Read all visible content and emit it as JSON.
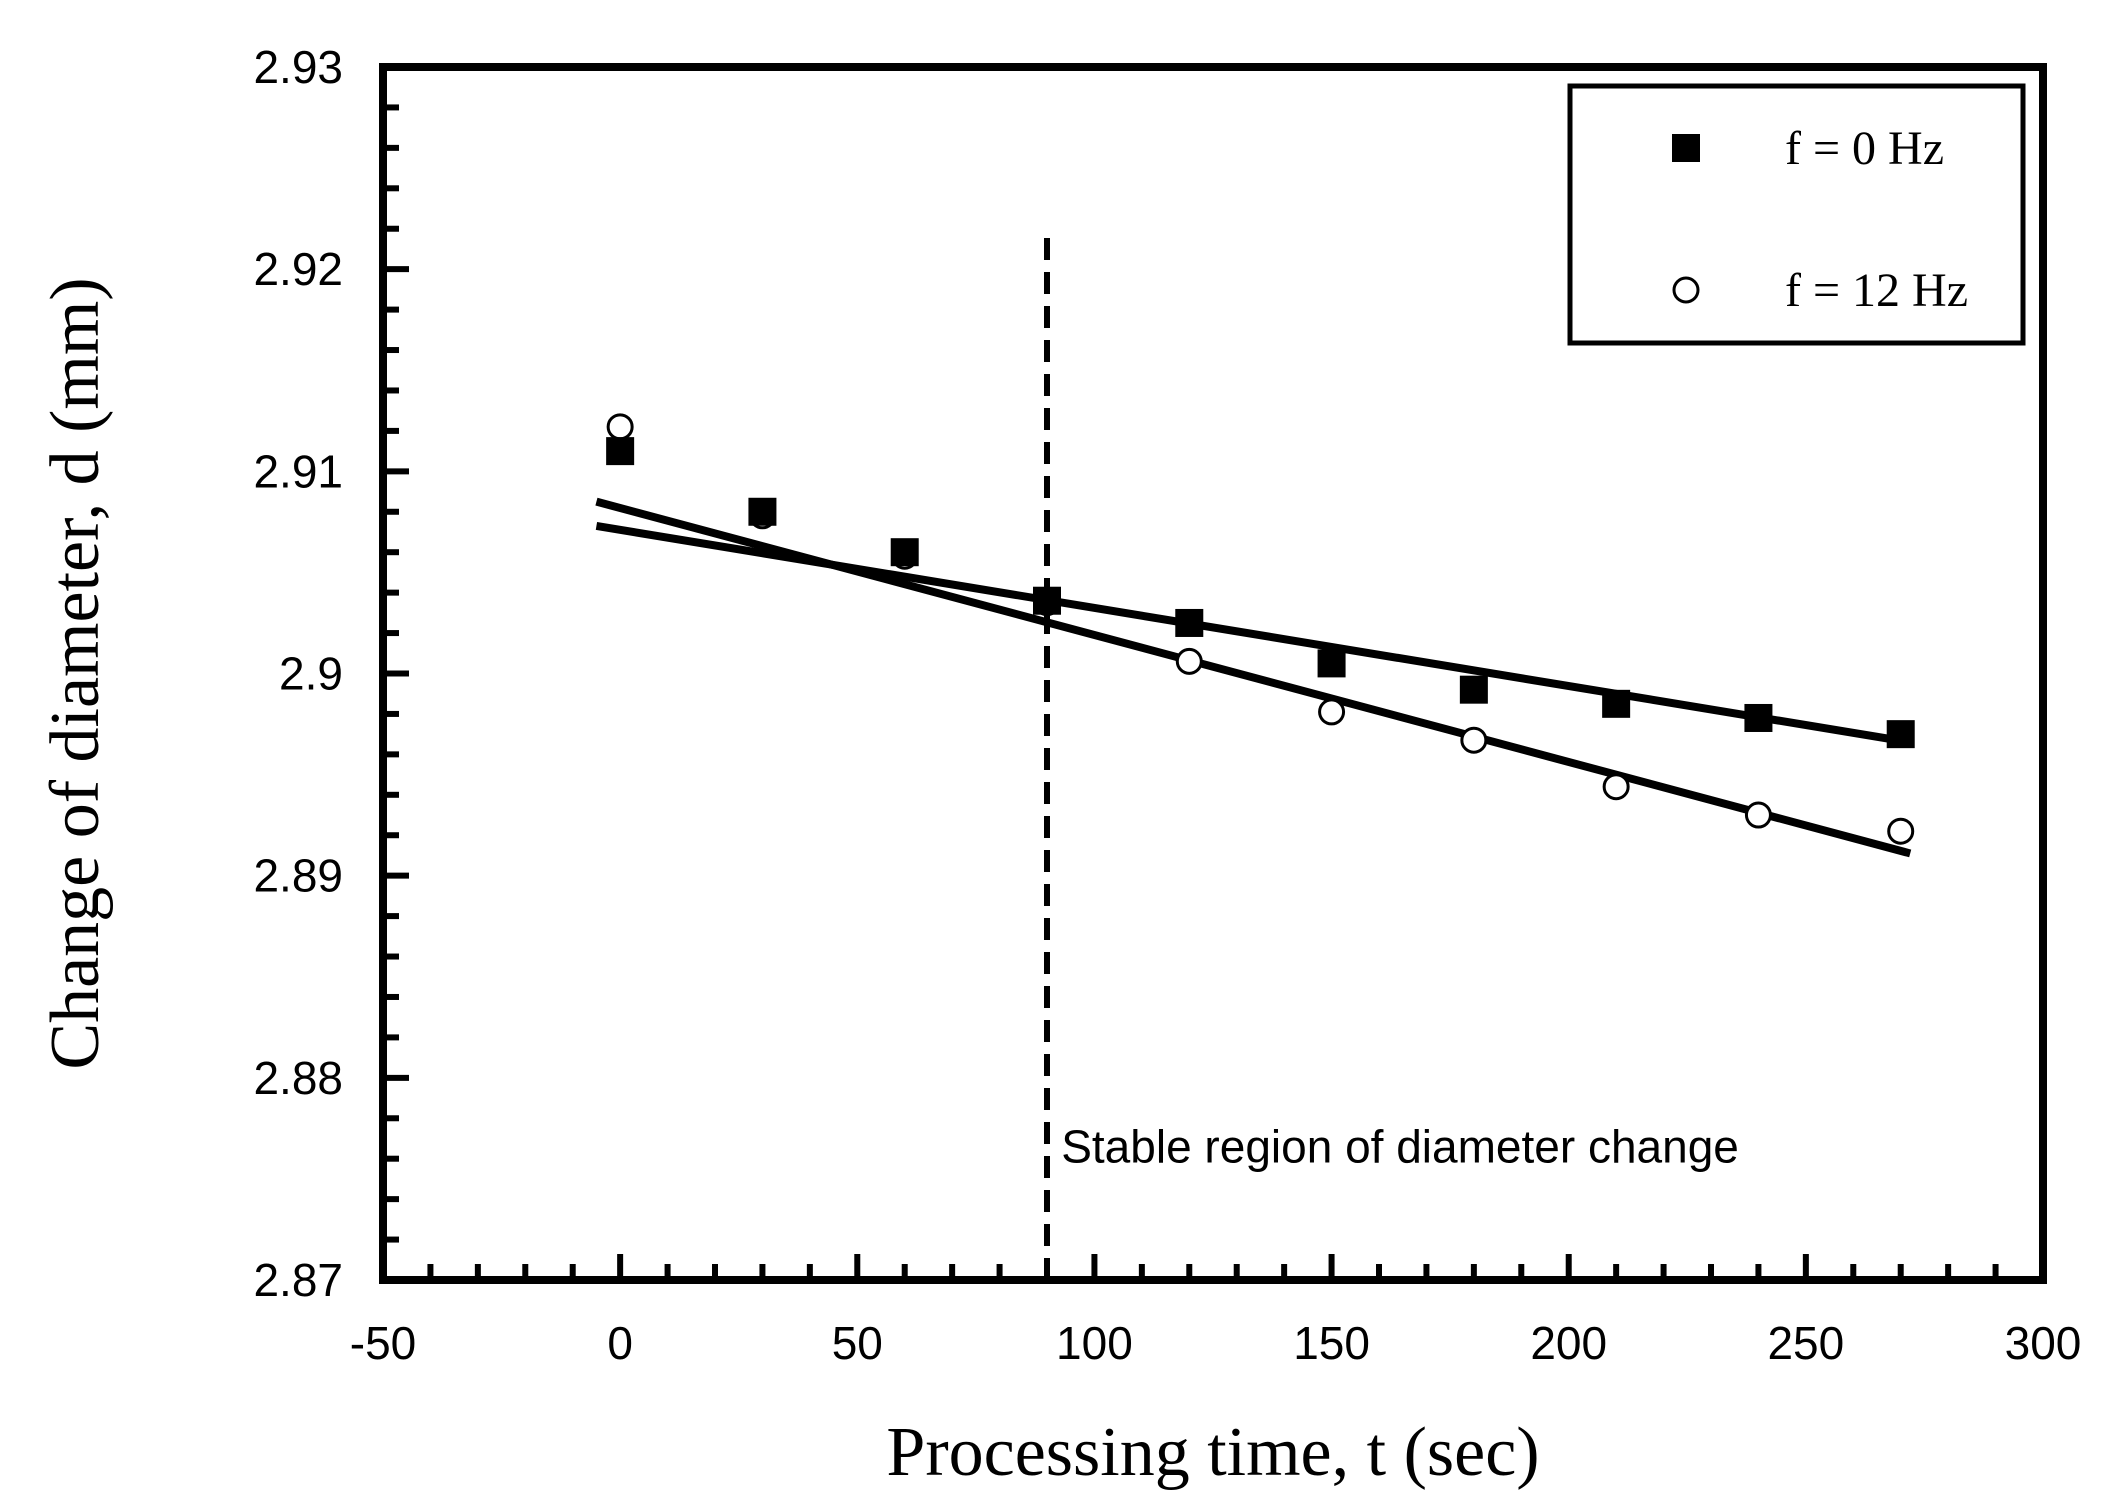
{
  "chart_data": {
    "type": "scatter",
    "title": "",
    "xlabel": "Processing time, t (sec)",
    "ylabel": "Change of diameter, d (mm)",
    "xlim": [
      -50,
      300
    ],
    "ylim": [
      2.87,
      2.93
    ],
    "xticks": [
      -50,
      0,
      50,
      100,
      150,
      200,
      250,
      300
    ],
    "yticks": [
      2.87,
      2.88,
      2.89,
      2.9,
      2.91,
      2.92,
      2.93
    ],
    "xtick_labels": [
      "-50",
      "0",
      "50",
      "100",
      "150",
      "200",
      "250",
      "300"
    ],
    "ytick_labels": [
      "2.87",
      "2.88",
      "2.89",
      "2.9",
      "2.91",
      "2.92",
      "2.93"
    ],
    "grid": false,
    "legend_position": "top-right",
    "series": [
      {
        "name": "f = 0 Hz",
        "marker": "filled-square",
        "x": [
          0,
          30,
          60,
          90,
          120,
          150,
          180,
          210,
          240,
          270
        ],
        "y": [
          2.911,
          2.908,
          2.906,
          2.9036,
          2.9025,
          2.9005,
          2.8992,
          2.8985,
          2.8978,
          2.897
        ],
        "fit_line": {
          "x": [
            -5,
            272
          ],
          "y": [
            2.9073,
            2.8966
          ]
        }
      },
      {
        "name": "f = 12 Hz",
        "marker": "open-circle",
        "x": [
          0,
          30,
          60,
          90,
          120,
          150,
          180,
          210,
          240,
          270
        ],
        "y": [
          2.9122,
          2.9078,
          2.9058,
          2.9035,
          2.9006,
          2.8981,
          2.8967,
          2.8944,
          2.893,
          2.8922
        ],
        "fit_line": {
          "x": [
            -5,
            272
          ],
          "y": [
            2.9085,
            2.8911
          ]
        }
      }
    ],
    "annotations": [
      {
        "type": "vline",
        "x": 90,
        "y_range": [
          2.87,
          2.9218
        ],
        "style": "dashed"
      },
      {
        "type": "text",
        "text": "Stable region of  diameter change",
        "x": 93,
        "y": 2.8758
      }
    ]
  }
}
